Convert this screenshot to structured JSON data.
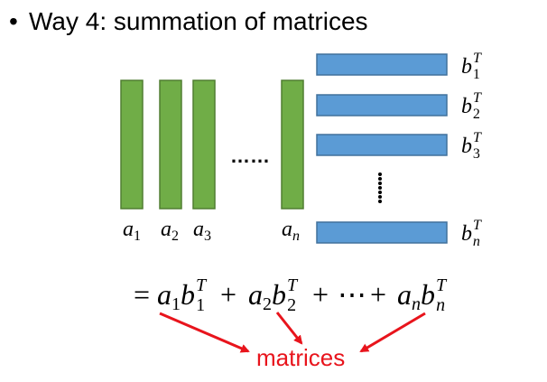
{
  "title": {
    "bullet": "•",
    "text": "Way 4: summation of matrices"
  },
  "columns": [
    {
      "base": "a",
      "sub": "1"
    },
    {
      "base": "a",
      "sub": "2"
    },
    {
      "base": "a",
      "sub": "3"
    },
    {
      "base": "a",
      "sub": "n"
    }
  ],
  "rows": [
    {
      "base": "b",
      "sub": "1",
      "sup": "T"
    },
    {
      "base": "b",
      "sub": "2",
      "sup": "T"
    },
    {
      "base": "b",
      "sub": "3",
      "sup": "T"
    },
    {
      "base": "b",
      "sub": "n",
      "sup": "T"
    }
  ],
  "h_ellipsis": "……",
  "equation": {
    "eq": "=",
    "plus": "+",
    "cdots": "⋯",
    "terms": [
      {
        "a_sub": "1",
        "b_sub": "1",
        "sup": "T"
      },
      {
        "a_sub": "2",
        "b_sub": "2",
        "sup": "T"
      },
      {
        "a_sub": "n",
        "b_sub": "n",
        "sup": "T"
      }
    ]
  },
  "result_label": "matrices",
  "colors": {
    "column": "#70ad47",
    "column_border": "#507e32",
    "row": "#5b9bd5",
    "row_border": "#41719c",
    "accent": "#e8141c"
  }
}
